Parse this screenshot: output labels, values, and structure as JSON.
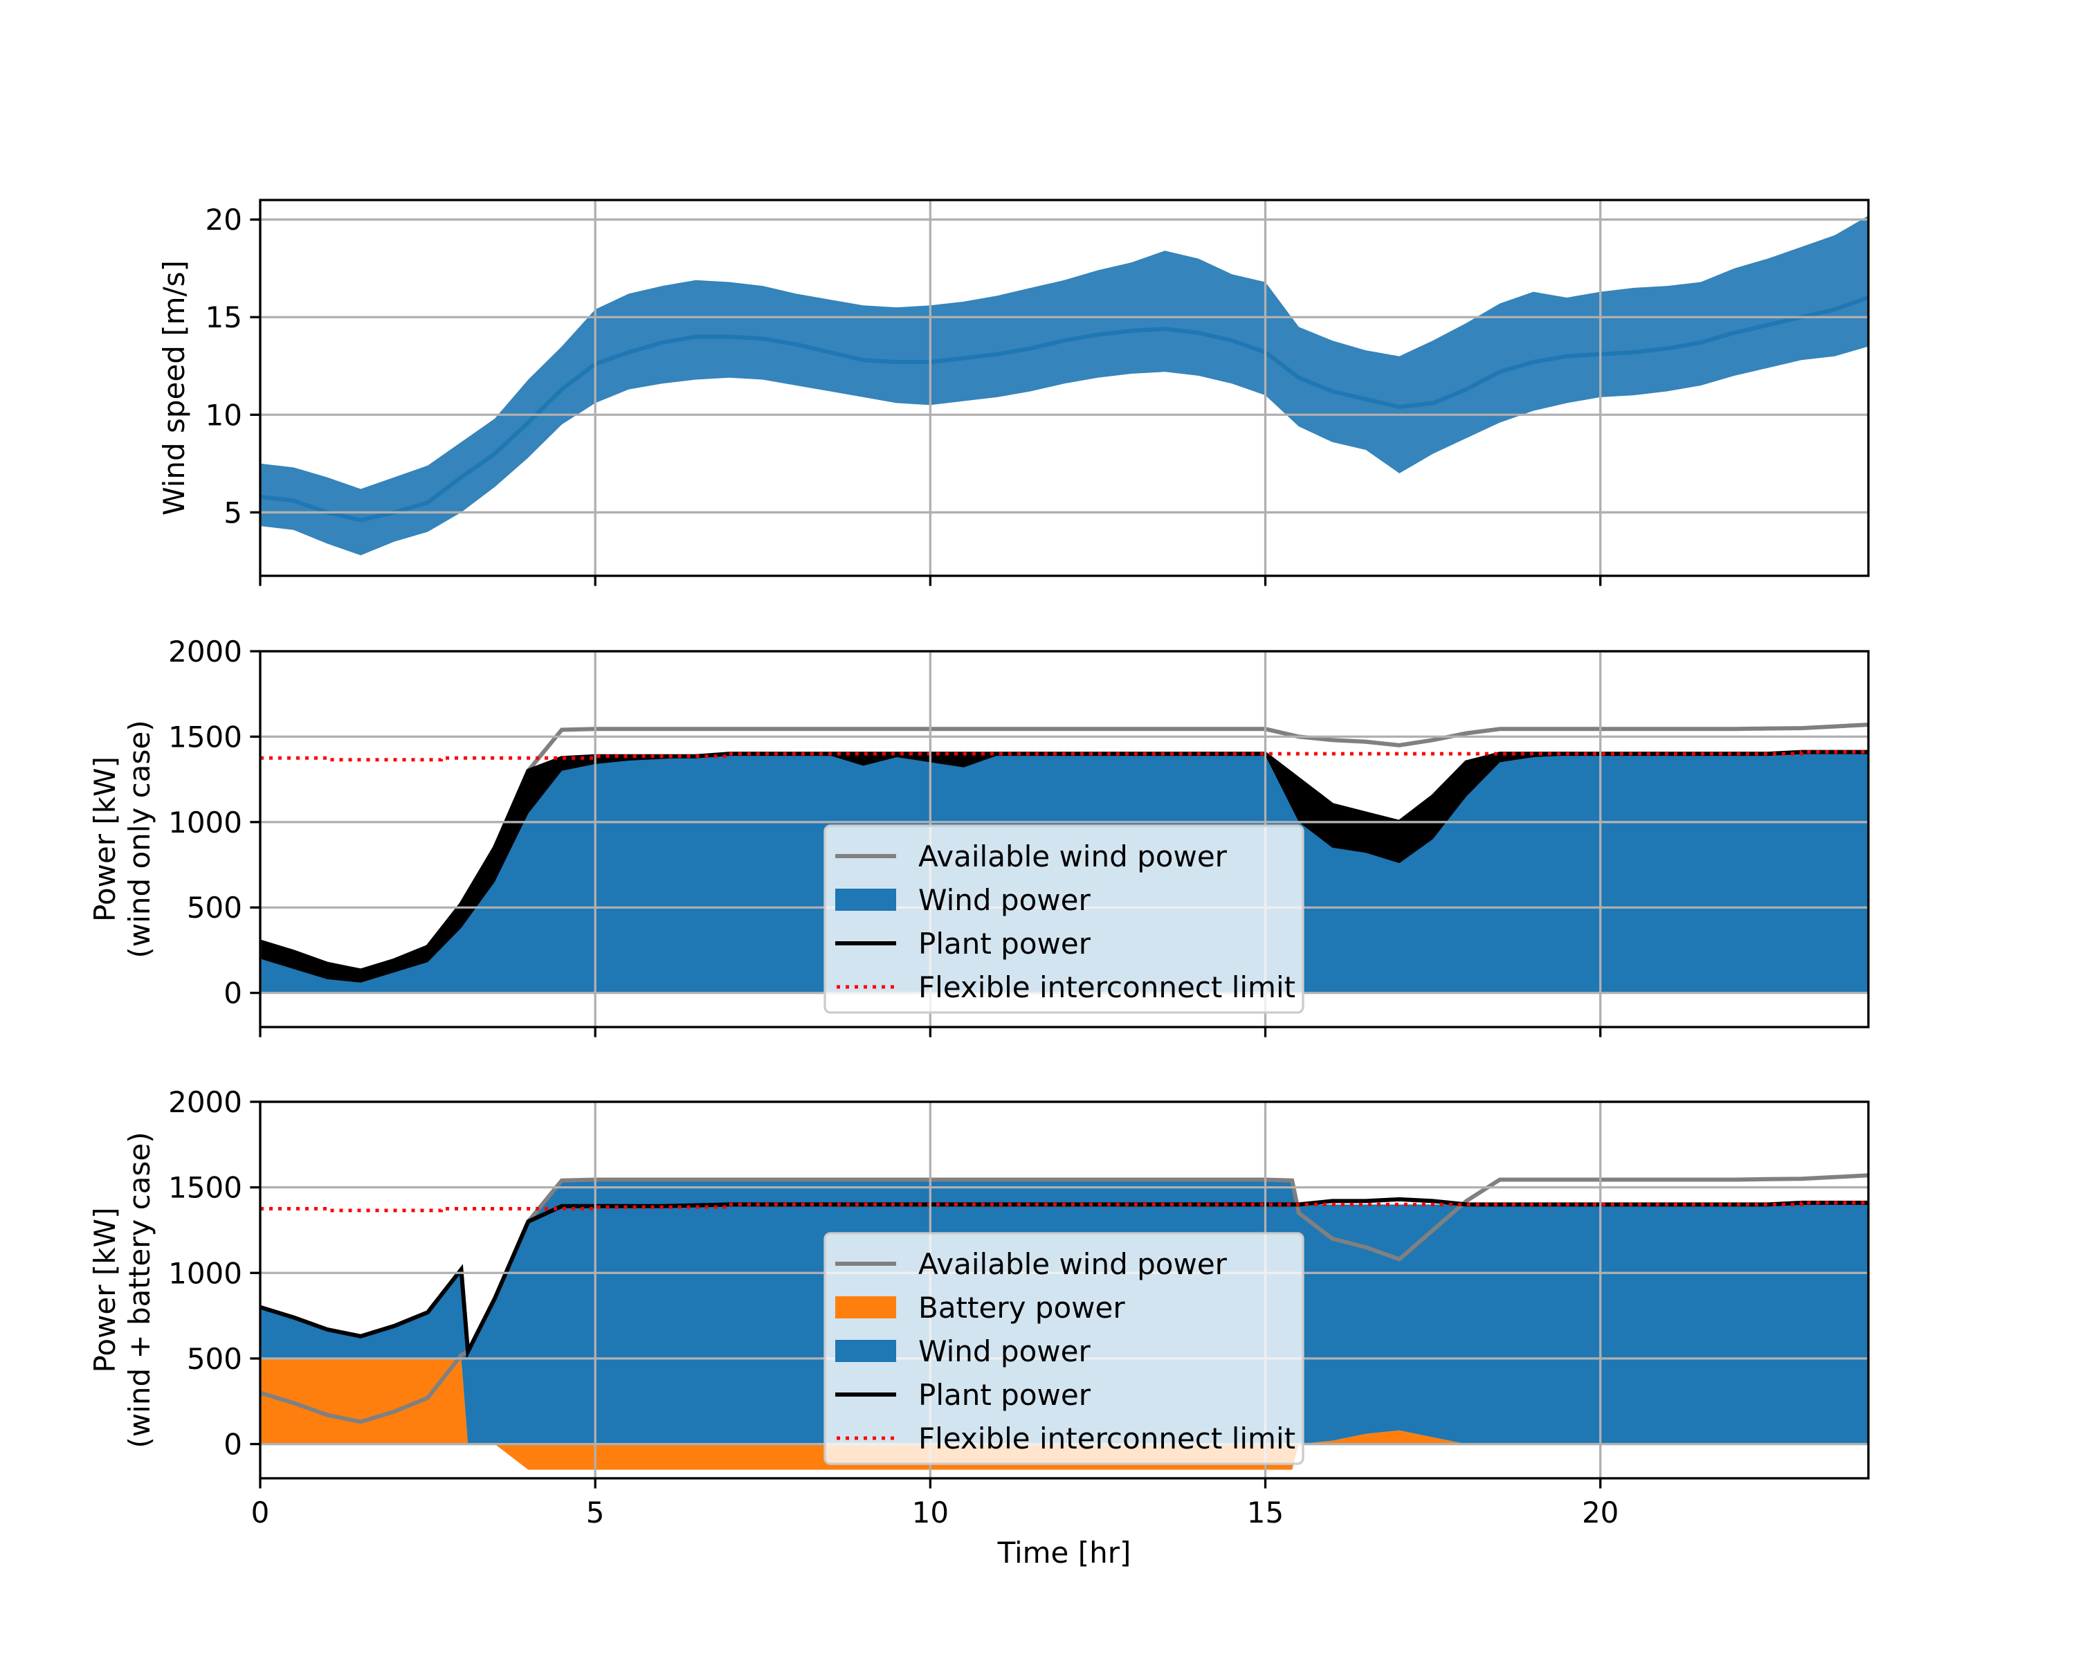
{
  "chart_data": [
    {
      "type": "line",
      "ylabel": "Wind speed [m/s]",
      "xlim": [
        0,
        24
      ],
      "ylim": [
        1.75,
        21
      ],
      "xticks": [
        "0",
        "5",
        "10",
        "15",
        "20"
      ],
      "yticks": [
        "5",
        "10",
        "15",
        "20"
      ],
      "grid": true,
      "series_color": "#1f77b4",
      "x": [
        0,
        0.5,
        1,
        1.5,
        2,
        2.5,
        3,
        3.5,
        4,
        4.5,
        5,
        5.5,
        6,
        6.5,
        7,
        7.5,
        8,
        8.5,
        9,
        9.5,
        10,
        10.5,
        11,
        11.5,
        12,
        12.5,
        13,
        13.5,
        14,
        14.5,
        15,
        15.5,
        16,
        16.5,
        17,
        17.5,
        18,
        18.5,
        19,
        19.5,
        20,
        20.5,
        21,
        21.5,
        22,
        22.5,
        23,
        23.5,
        24
      ],
      "wind_speed": [
        5.8,
        5.6,
        5.0,
        4.6,
        5.0,
        5.5,
        6.8,
        8.0,
        9.6,
        11.3,
        12.6,
        13.2,
        13.7,
        14.0,
        14.0,
        13.9,
        13.6,
        13.2,
        12.8,
        12.7,
        12.7,
        12.9,
        13.1,
        13.4,
        13.8,
        14.1,
        14.3,
        14.4,
        14.2,
        13.8,
        13.2,
        11.9,
        11.2,
        10.8,
        10.4,
        10.6,
        11.3,
        12.2,
        12.7,
        13.0,
        13.1,
        13.2,
        13.4,
        13.7,
        14.2,
        14.6,
        15.0,
        15.4,
        16.0
      ],
      "wind_speed_min": [
        4.3,
        4.1,
        3.4,
        2.8,
        3.5,
        4.0,
        5.0,
        6.3,
        7.8,
        9.5,
        10.6,
        11.3,
        11.6,
        11.8,
        11.9,
        11.8,
        11.5,
        11.2,
        10.9,
        10.6,
        10.5,
        10.7,
        10.9,
        11.2,
        11.6,
        11.9,
        12.1,
        12.2,
        12.0,
        11.6,
        11.0,
        9.4,
        8.6,
        8.2,
        7.0,
        8.0,
        8.8,
        9.6,
        10.2,
        10.6,
        10.9,
        11.0,
        11.2,
        11.5,
        12.0,
        12.4,
        12.8,
        13.0,
        13.5
      ],
      "wind_speed_max": [
        7.5,
        7.3,
        6.8,
        6.2,
        6.8,
        7.4,
        8.6,
        9.8,
        11.8,
        13.5,
        15.4,
        16.2,
        16.6,
        16.9,
        16.8,
        16.6,
        16.2,
        15.9,
        15.6,
        15.5,
        15.6,
        15.8,
        16.1,
        16.5,
        16.9,
        17.4,
        17.8,
        18.4,
        18.0,
        17.2,
        16.8,
        14.5,
        13.8,
        13.3,
        13.0,
        13.8,
        14.7,
        15.7,
        16.3,
        16.0,
        16.3,
        16.5,
        16.6,
        16.8,
        17.5,
        18.0,
        18.6,
        19.2,
        20.2
      ]
    },
    {
      "type": "area",
      "ylabel_lines": [
        "Power [kW]",
        "(wind only case)"
      ],
      "xlim": [
        0,
        24
      ],
      "ylim": [
        -200,
        2000
      ],
      "xticks": [
        "0",
        "5",
        "10",
        "15",
        "20"
      ],
      "yticks": [
        "0",
        "500",
        "1000",
        "1500",
        "2000"
      ],
      "grid": true,
      "legend_placement": "lower-center",
      "legend": [
        {
          "label": "Available wind power",
          "kind": "line",
          "color": "#808080"
        },
        {
          "label": "Wind power",
          "kind": "patch",
          "color": "#1f77b4"
        },
        {
          "label": "Plant power",
          "kind": "line",
          "color": "#000000"
        },
        {
          "label": "Flexible interconnect limit",
          "kind": "dotted",
          "color": "#ff0000"
        }
      ],
      "x": [
        0,
        0.5,
        1,
        1.5,
        2,
        2.5,
        3,
        3.5,
        4,
        4.5,
        5,
        5.5,
        6,
        6.5,
        7,
        7.5,
        8,
        8.5,
        9,
        9.5,
        10,
        10.5,
        11,
        11.5,
        12,
        12.5,
        13,
        13.5,
        14,
        14.5,
        15,
        15.5,
        16,
        16.5,
        17,
        17.5,
        18,
        18.5,
        19,
        19.5,
        20,
        20.5,
        21,
        21.5,
        22,
        22.5,
        23,
        23.5,
        24
      ],
      "available_wind_power": [
        300,
        240,
        170,
        130,
        190,
        270,
        520,
        850,
        1300,
        1540,
        1545,
        1545,
        1545,
        1545,
        1545,
        1545,
        1545,
        1545,
        1545,
        1545,
        1545,
        1545,
        1545,
        1545,
        1545,
        1545,
        1545,
        1545,
        1545,
        1545,
        1545,
        1500,
        1480,
        1470,
        1450,
        1480,
        1520,
        1545,
        1545,
        1545,
        1545,
        1545,
        1545,
        1545,
        1545,
        1548,
        1550,
        1560,
        1570
      ],
      "wind_power": [
        300,
        240,
        170,
        130,
        190,
        270,
        520,
        850,
        1300,
        1375,
        1385,
        1385,
        1385,
        1385,
        1400,
        1400,
        1400,
        1400,
        1400,
        1400,
        1400,
        1400,
        1400,
        1400,
        1400,
        1400,
        1400,
        1400,
        1400,
        1400,
        1400,
        1250,
        1100,
        1050,
        1000,
        1150,
        1350,
        1400,
        1400,
        1400,
        1400,
        1400,
        1400,
        1400,
        1400,
        1400,
        1410,
        1410,
        1410
      ],
      "plant_power": [
        300,
        240,
        170,
        130,
        190,
        270,
        520,
        850,
        1300,
        1375,
        1385,
        1385,
        1385,
        1385,
        1400,
        1400,
        1400,
        1400,
        1400,
        1400,
        1400,
        1400,
        1400,
        1400,
        1400,
        1400,
        1400,
        1400,
        1400,
        1400,
        1400,
        1250,
        1100,
        1050,
        1000,
        1150,
        1350,
        1400,
        1400,
        1400,
        1400,
        1400,
        1400,
        1400,
        1400,
        1400,
        1410,
        1410,
        1410
      ],
      "plant_power_min": [
        200,
        140,
        80,
        60,
        120,
        180,
        380,
        650,
        1050,
        1300,
        1340,
        1360,
        1370,
        1380,
        1390,
        1390,
        1390,
        1390,
        1330,
        1380,
        1350,
        1320,
        1390,
        1390,
        1390,
        1390,
        1390,
        1390,
        1390,
        1390,
        1390,
        1000,
        850,
        820,
        760,
        900,
        1150,
        1350,
        1380,
        1390,
        1390,
        1390,
        1390,
        1390,
        1390,
        1390,
        1400,
        1400,
        1400
      ],
      "interconnect_limit_steps": [
        [
          0,
          1375
        ],
        [
          1,
          1365
        ],
        [
          2.7,
          1375
        ],
        [
          5,
          1385
        ],
        [
          7,
          1400
        ],
        [
          23,
          1410
        ],
        [
          24,
          1410
        ]
      ]
    },
    {
      "type": "area",
      "xlabel": "Time [hr]",
      "ylabel_lines": [
        "Power [kW]",
        "(wind + battery case)"
      ],
      "xlim": [
        0,
        24
      ],
      "ylim": [
        -200,
        2000
      ],
      "xticks": [
        "0",
        "5",
        "10",
        "15",
        "20"
      ],
      "yticks": [
        "0",
        "500",
        "1000",
        "1500",
        "2000"
      ],
      "grid": true,
      "legend_placement": "lower-center",
      "legend": [
        {
          "label": "Available wind power",
          "kind": "line",
          "color": "#808080"
        },
        {
          "label": "Battery power",
          "kind": "patch",
          "color": "#ff7f0e"
        },
        {
          "label": "Wind power",
          "kind": "patch",
          "color": "#1f77b4"
        },
        {
          "label": "Plant power",
          "kind": "line",
          "color": "#000000"
        },
        {
          "label": "Flexible interconnect limit",
          "kind": "dotted",
          "color": "#ff0000"
        }
      ],
      "x": [
        0,
        0.5,
        1,
        1.5,
        2,
        2.5,
        3,
        3.1,
        3.5,
        4,
        4.5,
        5,
        5.5,
        6,
        6.5,
        7,
        7.5,
        8,
        8.5,
        9,
        9.5,
        10,
        10.5,
        11,
        11.5,
        12,
        12.5,
        13,
        13.5,
        14,
        14.5,
        15,
        15.4,
        15.5,
        16,
        16.5,
        17,
        17.5,
        18,
        18.5,
        19,
        19.5,
        20,
        20.5,
        21,
        21.5,
        22,
        22.5,
        23,
        23.5,
        24
      ],
      "available_wind_power": [
        300,
        240,
        170,
        130,
        190,
        270,
        520,
        540,
        850,
        1300,
        1540,
        1545,
        1545,
        1545,
        1545,
        1545,
        1545,
        1545,
        1545,
        1545,
        1545,
        1545,
        1545,
        1545,
        1545,
        1545,
        1545,
        1545,
        1545,
        1545,
        1545,
        1545,
        1540,
        1350,
        1200,
        1150,
        1080,
        1250,
        1420,
        1545,
        1545,
        1545,
        1545,
        1545,
        1545,
        1545,
        1545,
        1548,
        1550,
        1560,
        1570
      ],
      "battery_power": [
        500,
        500,
        500,
        500,
        500,
        500,
        500,
        0,
        0,
        -150,
        -150,
        -150,
        -150,
        -150,
        -150,
        -150,
        -150,
        -150,
        -150,
        -150,
        -150,
        -150,
        -150,
        -150,
        -150,
        -150,
        -150,
        -150,
        -150,
        -150,
        -150,
        -150,
        -150,
        0,
        20,
        60,
        80,
        40,
        0,
        0,
        0,
        0,
        0,
        0,
        0,
        0,
        0,
        0,
        0,
        0,
        0
      ],
      "wind_power": [
        300,
        240,
        170,
        130,
        190,
        270,
        520,
        540,
        850,
        1300,
        1540,
        1540,
        1540,
        1540,
        1540,
        1540,
        1540,
        1540,
        1540,
        1540,
        1540,
        1540,
        1540,
        1540,
        1540,
        1540,
        1540,
        1540,
        1540,
        1540,
        1540,
        1540,
        1540,
        1400,
        1380,
        1340,
        1320,
        1360,
        1400,
        1400,
        1400,
        1400,
        1400,
        1400,
        1400,
        1400,
        1400,
        1400,
        1410,
        1410,
        1410
      ],
      "plant_power": [
        800,
        740,
        670,
        630,
        690,
        770,
        1020,
        540,
        850,
        1300,
        1390,
        1390,
        1390,
        1390,
        1395,
        1400,
        1400,
        1400,
        1400,
        1400,
        1400,
        1400,
        1400,
        1400,
        1400,
        1400,
        1400,
        1400,
        1400,
        1400,
        1400,
        1400,
        1400,
        1400,
        1420,
        1420,
        1430,
        1420,
        1400,
        1400,
        1400,
        1400,
        1400,
        1400,
        1400,
        1400,
        1400,
        1400,
        1410,
        1410,
        1410
      ],
      "interconnect_limit_steps": [
        [
          0,
          1375
        ],
        [
          1,
          1365
        ],
        [
          2.7,
          1375
        ],
        [
          5,
          1385
        ],
        [
          7,
          1400
        ],
        [
          23,
          1410
        ],
        [
          24,
          1410
        ]
      ]
    }
  ]
}
